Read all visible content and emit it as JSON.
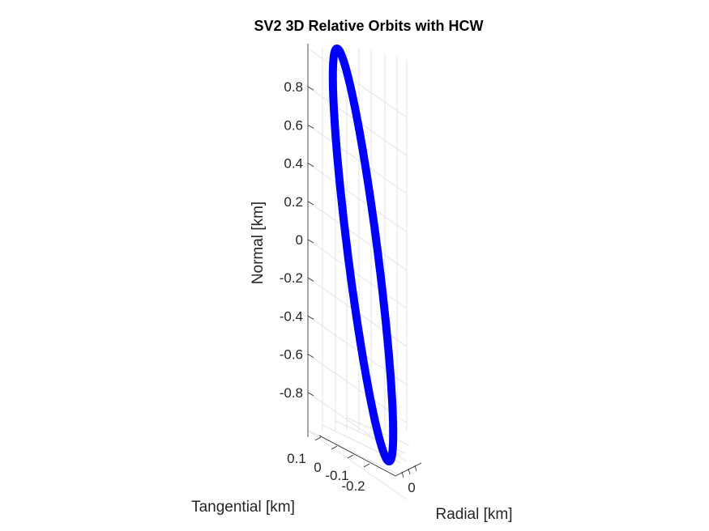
{
  "chart_data": {
    "type": "line",
    "title": "SV2 3D Relative Orbits with HCW",
    "xlabel": "Radial [km]",
    "ylabel": "Tangential [km]",
    "zlabel": "Normal [km]",
    "z_ticks": [
      "0.8",
      "0.6",
      "0.4",
      "0.2",
      "0",
      "-0.2",
      "-0.4",
      "-0.6",
      "-0.8"
    ],
    "z_tick_values": [
      0.8,
      0.6,
      0.4,
      0.2,
      0,
      -0.2,
      -0.4,
      -0.6,
      -0.8
    ],
    "y_ticks": [
      "0.1",
      "0",
      "-0.1",
      "-0.2"
    ],
    "y_tick_values": [
      0.1,
      0,
      -0.1,
      -0.2
    ],
    "x_ticks": [
      "0"
    ],
    "x_tick_values": [
      0
    ],
    "zlim": [
      -1,
      1
    ],
    "grid": true,
    "series": [
      {
        "color": "#0000ff",
        "orbit": {
          "normal_amplitude": 1.0,
          "radial_amplitude": 0.01,
          "tangential_amplitude": 0.05
        }
      }
    ]
  }
}
